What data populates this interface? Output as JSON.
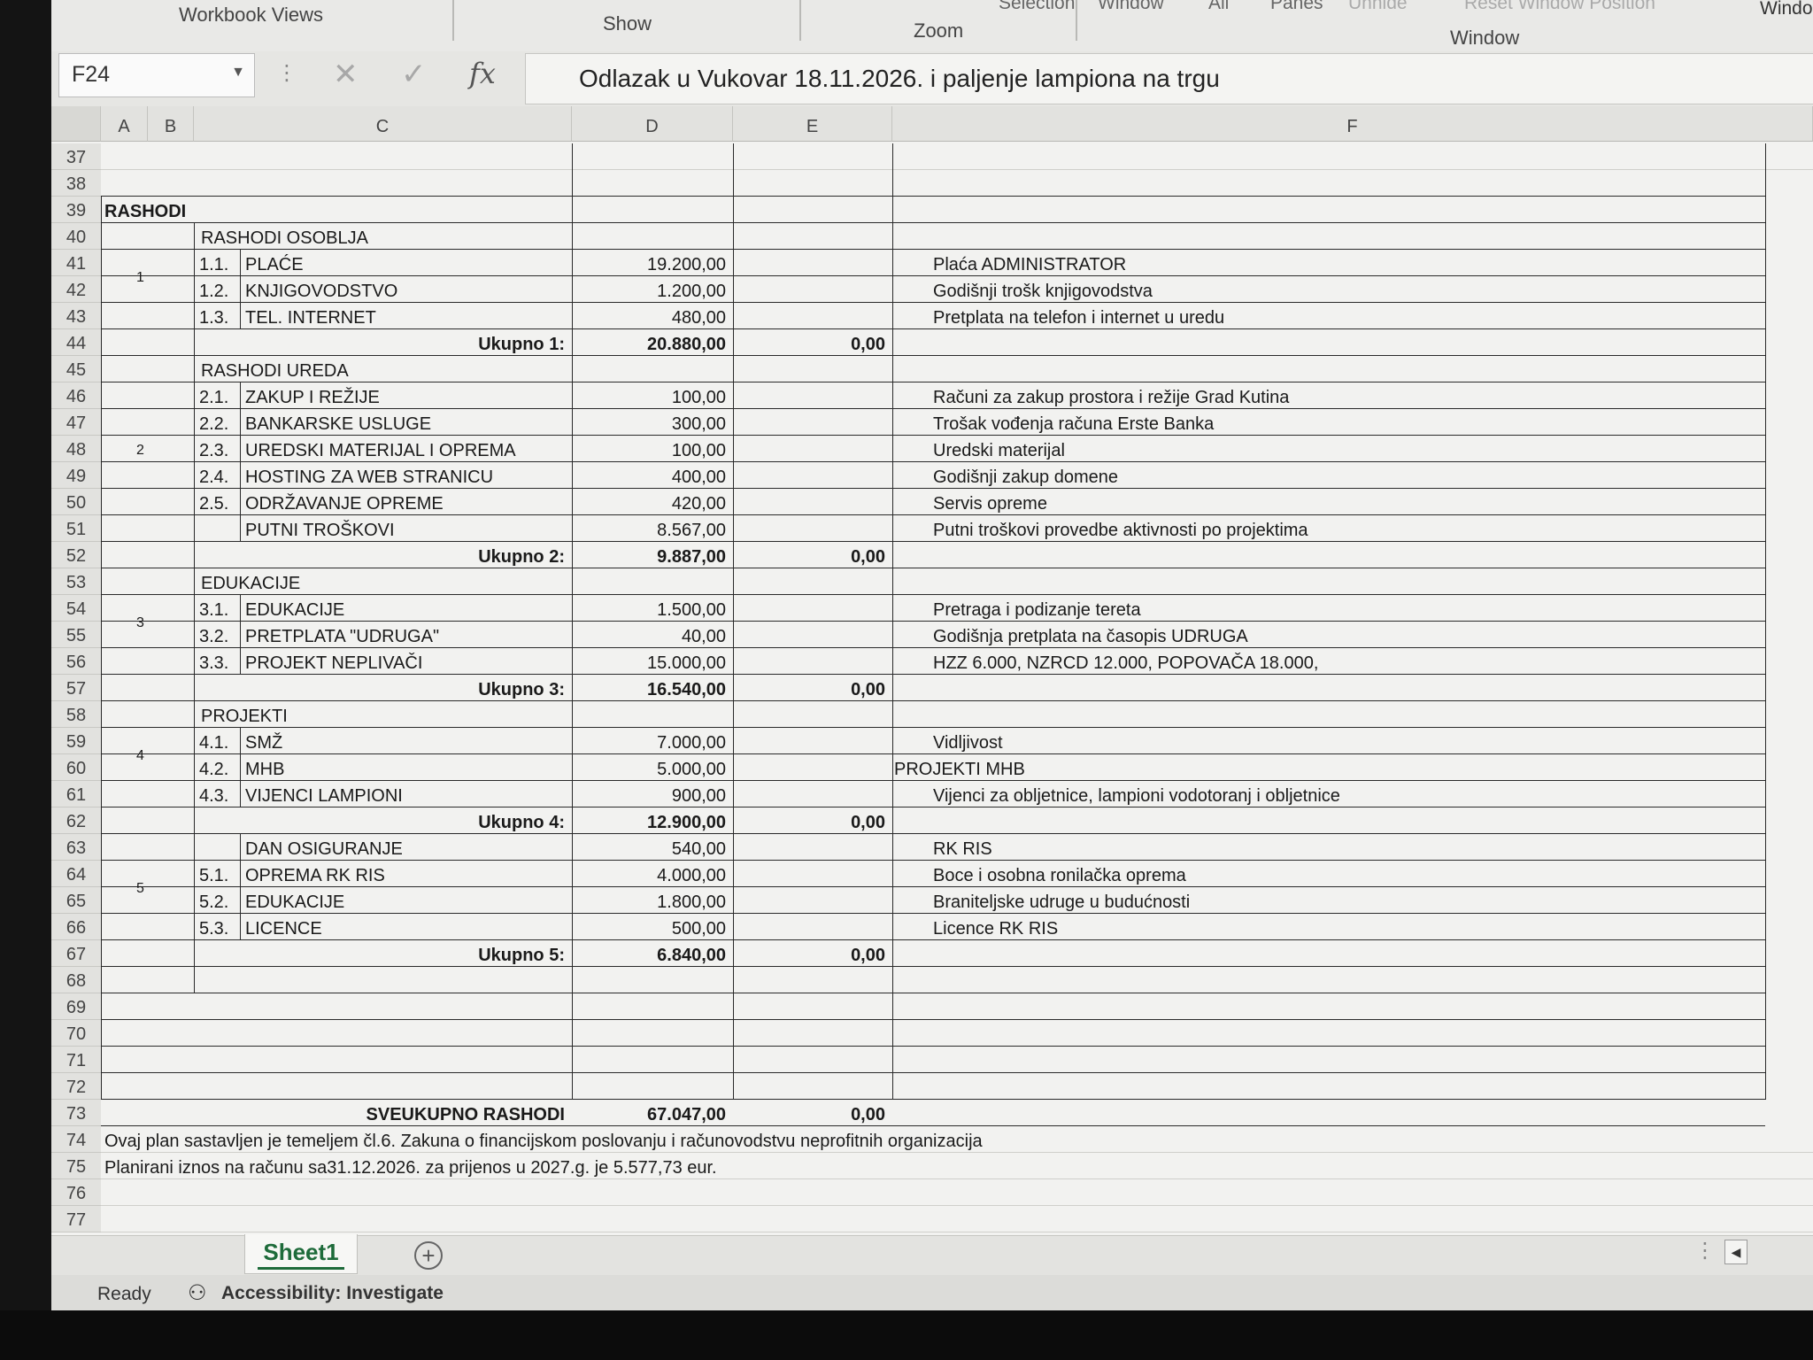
{
  "ribbon": {
    "workbook_views": "Workbook Views",
    "show": "Show",
    "zoom": "Zoom",
    "selection_partial": "Selection",
    "window_btn_partial": "Window",
    "all_partial": "All",
    "panes": "Panes",
    "unhide_partial": "Unhide",
    "reset_window_position": "Reset Window Position",
    "window_group": "Window",
    "window_edge_partial": "Windo"
  },
  "formula_bar": {
    "name_box": "F24",
    "formula": "Odlazak u Vukovar 18.11.2026. i paljenje lampiona na trgu",
    "fx": "fx",
    "cancel_glyph": "✕",
    "enter_glyph": "✓",
    "dots": "⋮"
  },
  "columns": [
    "A",
    "B",
    "C",
    "D",
    "E",
    "F"
  ],
  "rows": [
    {
      "n": "37"
    },
    {
      "n": "38"
    },
    {
      "n": "39",
      "title": "RASHODI"
    },
    {
      "n": "40",
      "c": "RASHODI OSOBLJA"
    },
    {
      "n": "41",
      "b": "1.1.",
      "c": "PLAĆE",
      "d": "19.200,00",
      "f": "Plaća ADMINISTRATOR"
    },
    {
      "n": "42",
      "b": "1.2.",
      "c": "KNJIGOVODSTVO",
      "d": "1.200,00",
      "f": "Godišnji trošk knjigovodstva"
    },
    {
      "n": "43",
      "b": "1.3.",
      "c": "TEL. INTERNET",
      "d": "480,00",
      "f": "Pretplata na telefon i internet u uredu"
    },
    {
      "n": "44",
      "total": "Ukupno 1:",
      "d": "20.880,00",
      "e": "0,00"
    },
    {
      "n": "45",
      "c": "RASHODI UREDA"
    },
    {
      "n": "46",
      "b": "2.1.",
      "c": "ZAKUP I REŽIJE",
      "d": "100,00",
      "f": "Računi za zakup prostora i režije Grad Kutina"
    },
    {
      "n": "47",
      "b": "2.2.",
      "c": "BANKARSKE USLUGE",
      "d": "300,00",
      "f": "Trošak vođenja računa Erste Banka"
    },
    {
      "n": "48",
      "b": "2.3.",
      "c": "UREDSKI MATERIJAL I OPREMA",
      "d": "100,00",
      "f": "Uredski materijal"
    },
    {
      "n": "49",
      "b": "2.4.",
      "c": "HOSTING ZA WEB STRANICU",
      "d": "400,00",
      "f": "Godišnji zakup domene"
    },
    {
      "n": "50",
      "b": "2.5.",
      "c": "ODRŽAVANJE OPREME",
      "d": "420,00",
      "f": "Servis opreme"
    },
    {
      "n": "51",
      "c": "PUTNI TROŠKOVI",
      "d": "8.567,00",
      "f": "Putni troškovi provedbe aktivnosti po projektima"
    },
    {
      "n": "52",
      "total": "Ukupno 2:",
      "d": "9.887,00",
      "e": "0,00"
    },
    {
      "n": "53",
      "c": "EDUKACIJE"
    },
    {
      "n": "54",
      "b": "3.1.",
      "c": "EDUKACIJE",
      "d": "1.500,00",
      "f": "Pretraga i podizanje tereta"
    },
    {
      "n": "55",
      "b": "3.2.",
      "c": "PRETPLATA \"UDRUGA\"",
      "d": "40,00",
      "f": "Godišnja pretplata na časopis UDRUGA"
    },
    {
      "n": "56",
      "b": "3.3.",
      "c": "PROJEKT NEPLIVAČI",
      "d": "15.000,00",
      "f": "HZZ 6.000, NZRCD 12.000, POPOVAČA 18.000,"
    },
    {
      "n": "57",
      "total": "Ukupno 3:",
      "d": "16.540,00",
      "e": "0,00"
    },
    {
      "n": "58",
      "c": "PROJEKTI"
    },
    {
      "n": "59",
      "b": "4.1.",
      "c": "SMŽ",
      "d": "7.000,00",
      "f": "Vidljivost"
    },
    {
      "n": "60",
      "b": "4.2.",
      "c": "MHB",
      "d": "5.000,00",
      "f": "PROJEKTI MHB"
    },
    {
      "n": "61",
      "b": "4.3.",
      "c": "VIJENCI LAMPIONI",
      "d": "900,00",
      "f": "Vijenci za obljetnice, lampioni vodotoranj i obljetnice"
    },
    {
      "n": "62",
      "total": "Ukupno 4:",
      "d": "12.900,00",
      "e": "0,00"
    },
    {
      "n": "63",
      "c": "DAN OSIGURANJE",
      "d": "540,00",
      "f": "RK RIS"
    },
    {
      "n": "64",
      "b": "5.1.",
      "c": "OPREMA RK RIS",
      "d": "4.000,00",
      "f": "Boce i osobna ronilačka oprema"
    },
    {
      "n": "65",
      "b": "5.2.",
      "c": "EDUKACIJE",
      "d": "1.800,00",
      "f": "Braniteljske udruge u budućnosti"
    },
    {
      "n": "66",
      "b": "5.3.",
      "c": "LICENCE",
      "d": "500,00",
      "f": "Licence RK RIS"
    },
    {
      "n": "67",
      "total": "Ukupno 5:",
      "d": "6.840,00",
      "e": "0,00"
    },
    {
      "n": "68"
    },
    {
      "n": "69"
    },
    {
      "n": "70"
    },
    {
      "n": "71"
    },
    {
      "n": "72"
    },
    {
      "n": "73",
      "total": "SVEUKUPNO RASHODI",
      "d": "67.047,00",
      "e": "0,00"
    },
    {
      "n": "74",
      "note": "Ovaj plan sastavljen je temeljem čl.6. Zakuna o financijskom poslovanju i računovodstvu neprofitnih organizacija"
    },
    {
      "n": "75",
      "note": "Planirani iznos na računu sa31.12.2026.   za prijenos u 2027.g. je 5.577,73 eur."
    },
    {
      "n": "76"
    },
    {
      "n": "77"
    }
  ],
  "groups": [
    "1",
    "2",
    "3",
    "4",
    "5"
  ],
  "sheet_tab": "Sheet1",
  "add_sheet": "+",
  "status": {
    "ready": "Ready",
    "accessibility": "Accessibility: Investigate"
  }
}
